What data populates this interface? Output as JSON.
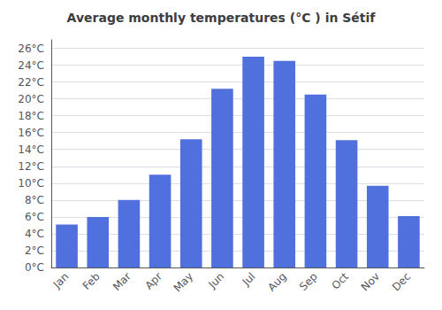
{
  "chart_data": {
    "type": "bar",
    "title": "Average monthly temperatures (°C ) in Sétif",
    "categories": [
      "Jan",
      "Feb",
      "Mar",
      "Apr",
      "May",
      "Jun",
      "Jul",
      "Aug",
      "Sep",
      "Oct",
      "Nov",
      "Dec"
    ],
    "values": [
      5.1,
      6.0,
      8.0,
      11.0,
      15.2,
      21.2,
      25.0,
      24.5,
      20.5,
      15.1,
      9.7,
      6.1
    ],
    "ylim": [
      0,
      27
    ],
    "yticks": [
      {
        "value": 0,
        "label": "0°C"
      },
      {
        "value": 2,
        "label": "2°C"
      },
      {
        "value": 4,
        "label": "4°C"
      },
      {
        "value": 6,
        "label": "6°C"
      },
      {
        "value": 8,
        "label": "8°C"
      },
      {
        "value": 10,
        "label": "10°C"
      },
      {
        "value": 12,
        "label": "12°C"
      },
      {
        "value": 14,
        "label": "14°C"
      },
      {
        "value": 16,
        "label": "16°C"
      },
      {
        "value": 18,
        "label": "18°C"
      },
      {
        "value": 20,
        "label": "20°C"
      },
      {
        "value": 22,
        "label": "22°C"
      },
      {
        "value": 24,
        "label": "24°C"
      },
      {
        "value": 26,
        "label": "26°C"
      }
    ],
    "grid": true
  }
}
